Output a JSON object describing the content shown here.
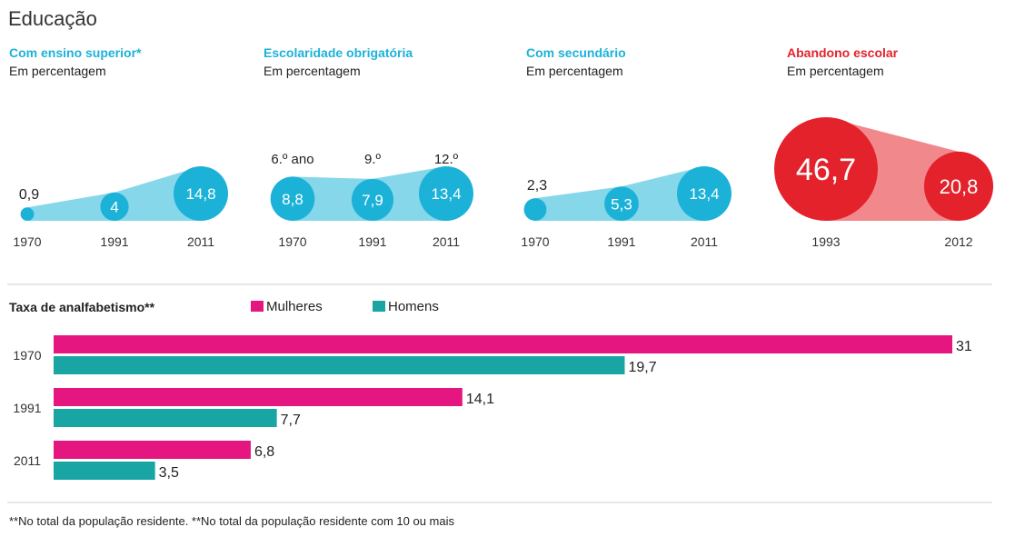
{
  "title": "Educação",
  "colors": {
    "cyan": "#1cb2d8",
    "cyan_light": "#86d7ea",
    "red": "#e4222c",
    "red_light": "#f1898c",
    "pink": "#e5167f",
    "teal": "#1aa5a5"
  },
  "footnote": "**No total da população residente. **No total da população residente com 10 ou mais",
  "chart_data": [
    {
      "type": "bubble",
      "title": "Com ensino superior*",
      "subtitle": "Em percentagem",
      "color": "cyan",
      "x": [
        "1970",
        "1991",
        "2011"
      ],
      "values": [
        0.9,
        4,
        14.8
      ],
      "labels": [
        "0,9",
        "4",
        "14,8"
      ],
      "annotations": []
    },
    {
      "type": "bubble",
      "title": "Escolaridade obrigatória",
      "subtitle": "Em percentagem",
      "color": "cyan",
      "x": [
        "1970",
        "1991",
        "2011"
      ],
      "values": [
        8.8,
        7.9,
        13.4
      ],
      "labels": [
        "8,8",
        "7,9",
        "13,4"
      ],
      "annotations": [
        "6.º ano",
        "9.º",
        "12.º"
      ]
    },
    {
      "type": "bubble",
      "title": "Com secundário",
      "subtitle": "Em percentagem",
      "color": "cyan",
      "x": [
        "1970",
        "1991",
        "2011"
      ],
      "values": [
        2.3,
        5.3,
        13.4
      ],
      "labels": [
        "2,3",
        "5,3",
        "13,4"
      ],
      "annotations": []
    },
    {
      "type": "bubble",
      "title": "Abandono escolar",
      "subtitle": "Em percentagem",
      "color": "red",
      "x": [
        "1993",
        "2012"
      ],
      "values": [
        46.7,
        20.8
      ],
      "labels": [
        "46,7",
        "20,8"
      ],
      "annotations": []
    },
    {
      "type": "bar",
      "title": "Taxa de analfabetismo**",
      "orientation": "horizontal",
      "categories": [
        "1970",
        "1991",
        "2011"
      ],
      "series": [
        {
          "name": "Mulheres",
          "color": "pink",
          "values": [
            31,
            14.1,
            6.8
          ],
          "labels": [
            "31",
            "14,1",
            "6,8"
          ]
        },
        {
          "name": "Homens",
          "color": "teal",
          "values": [
            19.7,
            7.7,
            3.5
          ],
          "labels": [
            "19,7",
            "7,7",
            "3,5"
          ]
        }
      ],
      "xlim": [
        0,
        31
      ]
    }
  ]
}
